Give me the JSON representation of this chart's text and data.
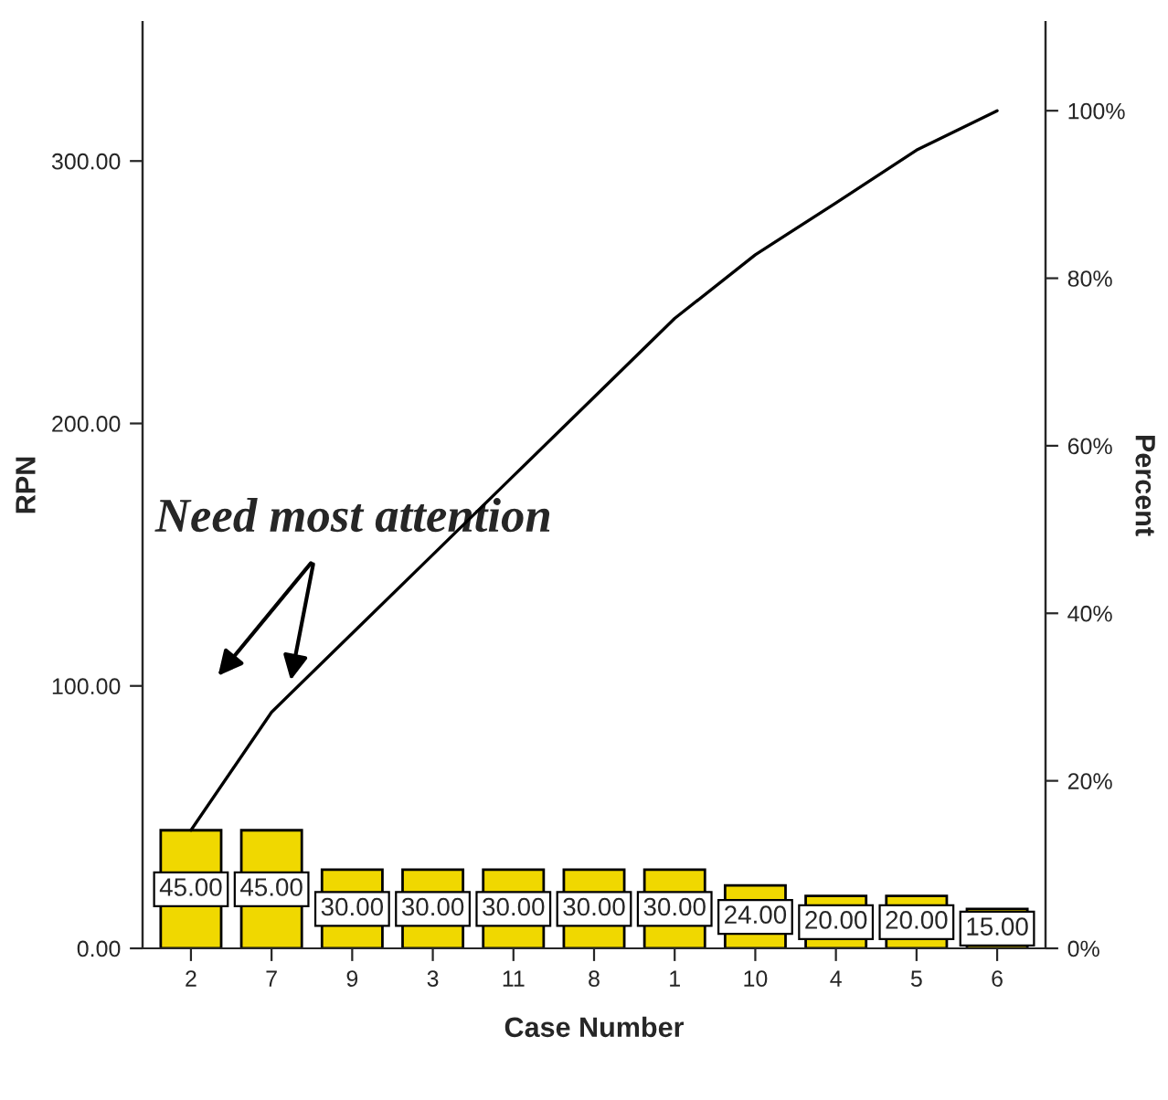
{
  "chart_data": {
    "type": "bar",
    "xlabel": "Case Number",
    "ylabel": "RPN",
    "y2label": "Percent",
    "categories": [
      "2",
      "7",
      "9",
      "3",
      "11",
      "8",
      "1",
      "10",
      "4",
      "5",
      "6"
    ],
    "series": [
      {
        "color": "#f0d800",
        "values": [
          45,
          45,
          30,
          30,
          30,
          30,
          30,
          24,
          20,
          20,
          15
        ],
        "value_labels": [
          "45.00",
          "45.00",
          "30.00",
          "30.00",
          "30.00",
          "30.00",
          "30.00",
          "24.00",
          "20.00",
          "20.00",
          "15.00"
        ]
      },
      {
        "type": "line",
        "axis": "y2",
        "color": "#000000",
        "values": [
          14.1,
          28.2,
          37.6,
          47.0,
          56.4,
          65.8,
          75.2,
          82.8,
          89.0,
          95.3,
          100
        ]
      }
    ],
    "ylim": [
      0,
      353
    ],
    "yticks": [
      {
        "value": 0,
        "label": "0.00"
      },
      {
        "value": 100,
        "label": "100.00"
      },
      {
        "value": 200,
        "label": "200.00"
      },
      {
        "value": 300,
        "label": "300.00"
      }
    ],
    "y2lim": [
      0,
      110.6
    ],
    "y2ticks": [
      {
        "value": 0,
        "label": "0%"
      },
      {
        "value": 20,
        "label": "20%"
      },
      {
        "value": 40,
        "label": "40%"
      },
      {
        "value": 60,
        "label": "60%"
      },
      {
        "value": 80,
        "label": "80%"
      },
      {
        "value": 100,
        "label": "100%"
      }
    ],
    "annotations": [
      "Need most attention"
    ],
    "grid": false,
    "legend": false
  }
}
